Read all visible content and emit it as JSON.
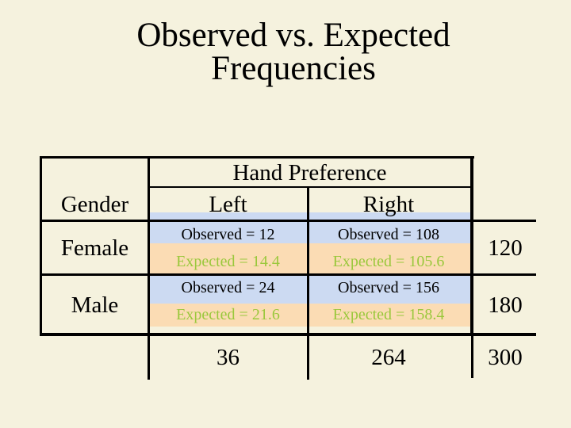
{
  "slide": {
    "title_line1": "Observed vs. Expected",
    "title_line2": "Frequencies"
  },
  "table": {
    "corner_label": "Gender",
    "col_group_label": "Hand Preference",
    "columns": [
      "Left",
      "Right"
    ],
    "rows": [
      {
        "label": "Female",
        "cells": [
          {
            "observed": "Observed = 12",
            "expected": "Expected = 14.4"
          },
          {
            "observed": "Observed = 108",
            "expected": "Expected = 105.6"
          }
        ],
        "total": "120"
      },
      {
        "label": "Male",
        "cells": [
          {
            "observed": "Observed = 24",
            "expected": "Expected = 21.6"
          },
          {
            "observed": "Observed = 156",
            "expected": "Expected = 158.4"
          }
        ],
        "total": "180"
      }
    ],
    "column_totals": [
      "36",
      "264"
    ],
    "grand_total": "300"
  },
  "colors": {
    "background": "#f5f2de",
    "band_observed": "#ccdaf2",
    "band_expected": "#fbdcb4",
    "text_expected": "#9ac83c",
    "border": "#000000"
  }
}
